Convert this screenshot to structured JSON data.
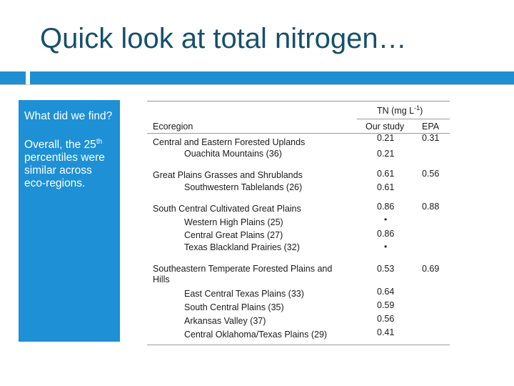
{
  "slide": {
    "title": "Quick look at total nitrogen…",
    "sidebar": {
      "question": "What did we find?",
      "answer_pre": "Overall, the 25",
      "answer_sup": "th",
      "answer_post": " percentiles were similar across eco-regions."
    }
  },
  "table": {
    "header": {
      "group_label_pre": "TN (mg L",
      "group_label_sup": "-1",
      "group_label_post": ")",
      "col_ecoregion": "Ecoregion",
      "col_our_study": "Our study",
      "col_epa": "EPA"
    },
    "rows": [
      {
        "name": "Central and Eastern Forested Uplands",
        "ours": "0.21",
        "epa": "0.31"
      },
      {
        "name": "Ouachita Mountains (36)",
        "ours": "0.21",
        "epa": ""
      },
      {
        "name": "Great Plains Grasses and Shrublands",
        "ours": "0.61",
        "epa": "0.56"
      },
      {
        "name": "Southwestern Tablelands (26)",
        "ours": "0.61",
        "epa": ""
      },
      {
        "name": "South Central Cultivated Great Plains",
        "ours": "0.86",
        "epa": "0.88"
      },
      {
        "name": "Western High Plains (25)",
        "ours": "•",
        "epa": ""
      },
      {
        "name": "Central Great Plains (27)",
        "ours": "0.86",
        "epa": ""
      },
      {
        "name": "Texas Blackland Prairies (32)",
        "ours": "•",
        "epa": ""
      },
      {
        "name": "Southeastern Temperate Forested Plains and",
        "ours": "0.53",
        "epa": "0.69"
      },
      {
        "name": "Hills",
        "ours": "",
        "epa": ""
      },
      {
        "name": "East Central Texas Plains (33)",
        "ours": "0.64",
        "epa": ""
      },
      {
        "name": "South Central Plains (35)",
        "ours": "0.59",
        "epa": ""
      },
      {
        "name": "Arkansas Valley (37)",
        "ours": "0.56",
        "epa": ""
      },
      {
        "name": "Central Oklahoma/Texas Plains (29)",
        "ours": "0.41",
        "epa": ""
      }
    ]
  }
}
